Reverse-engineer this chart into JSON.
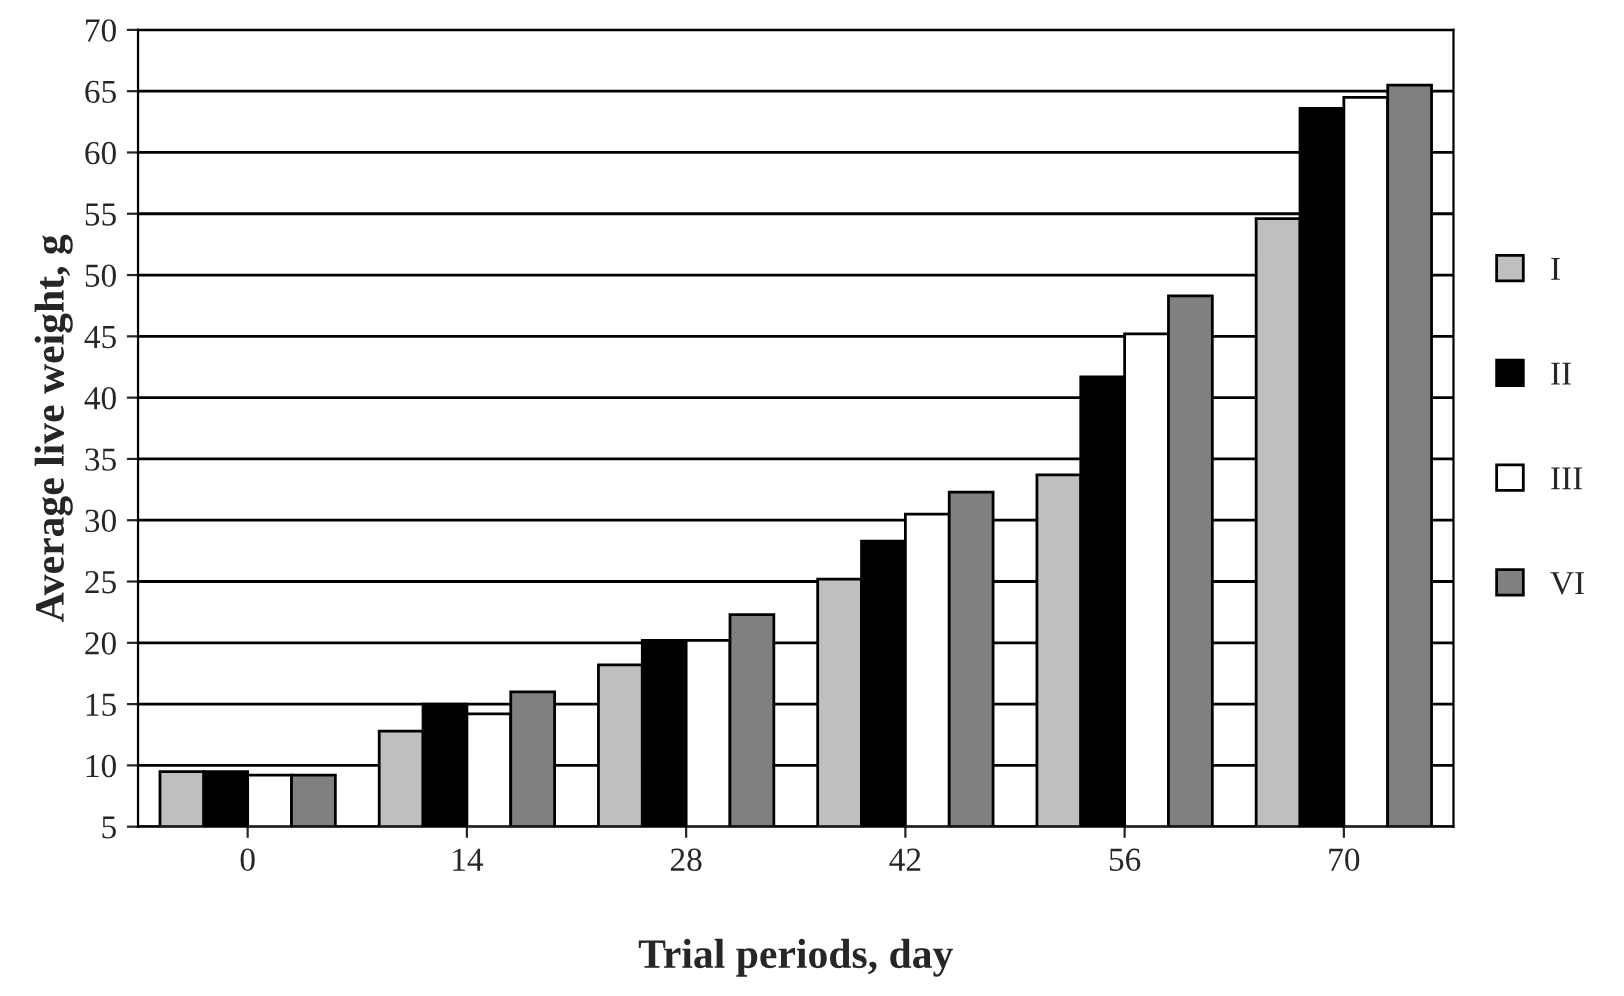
{
  "chart_data": {
    "type": "bar",
    "xlabel": "Trial periods, day",
    "ylabel": "Average live weight, g",
    "categories": [
      "0",
      "14",
      "28",
      "42",
      "56",
      "70"
    ],
    "series": [
      {
        "name": "I",
        "color": "#bfbfbf",
        "values": [
          9.5,
          12.8,
          18.2,
          25.2,
          33.7,
          54.6
        ]
      },
      {
        "name": "II",
        "color": "#000000",
        "values": [
          9.5,
          15.0,
          20.2,
          28.3,
          41.7,
          63.6
        ]
      },
      {
        "name": "III",
        "color": "#ffffff",
        "values": [
          9.2,
          14.2,
          20.2,
          30.5,
          45.2,
          64.5
        ]
      },
      {
        "name": "VI",
        "color": "#808080",
        "values": [
          9.2,
          16.0,
          22.3,
          32.3,
          48.3,
          65.5
        ]
      }
    ],
    "ylim": [
      5,
      70
    ],
    "yticks": [
      5,
      10,
      15,
      20,
      25,
      30,
      35,
      40,
      45,
      50,
      55,
      60,
      65,
      70
    ],
    "grid": "y",
    "legend": "right"
  }
}
